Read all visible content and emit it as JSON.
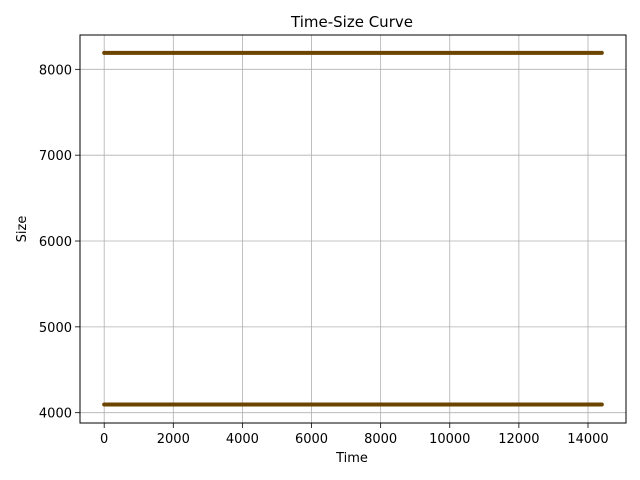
{
  "chart_data": {
    "type": "line",
    "title": "Time-Size Curve",
    "xlabel": "Time",
    "ylabel": "Size",
    "xlim": [
      -700,
      15100
    ],
    "ylim": [
      3880,
      8400
    ],
    "x_ticks": [
      0,
      2000,
      4000,
      6000,
      8000,
      10000,
      12000,
      14000
    ],
    "y_ticks": [
      4000,
      5000,
      6000,
      7000,
      8000
    ],
    "grid": true,
    "series": [
      {
        "color": "#6b4400",
        "x": [
          0,
          14400
        ],
        "values": [
          8192,
          8192
        ]
      },
      {
        "color": "#6b4400",
        "x": [
          0,
          14400
        ],
        "values": [
          4096,
          4096
        ]
      }
    ]
  }
}
